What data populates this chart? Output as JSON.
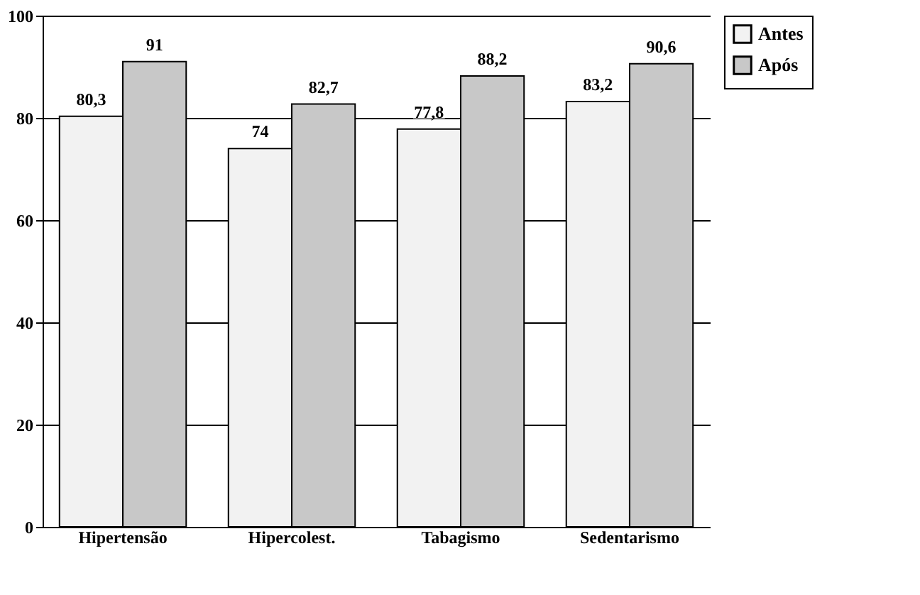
{
  "chart_data": {
    "type": "bar",
    "categories": [
      "Hipertensão",
      "Hipercolest.",
      "Tabagismo",
      "Sedentarismo"
    ],
    "series": [
      {
        "name": "Antes",
        "color": "#f2f2f2",
        "values": [
          80.3,
          74,
          77.8,
          83.2
        ],
        "value_labels": [
          "80,3",
          "74",
          "77,8",
          "83,2"
        ]
      },
      {
        "name": "Após",
        "color": "#c8c8c8",
        "values": [
          91,
          82.7,
          88.2,
          90.6
        ],
        "value_labels": [
          "91",
          "82,7",
          "88,2",
          "90,6"
        ]
      }
    ],
    "ylim": [
      0,
      100
    ],
    "yticks": [
      0,
      20,
      40,
      60,
      80,
      100
    ],
    "grid": "y",
    "legend": "top right"
  }
}
